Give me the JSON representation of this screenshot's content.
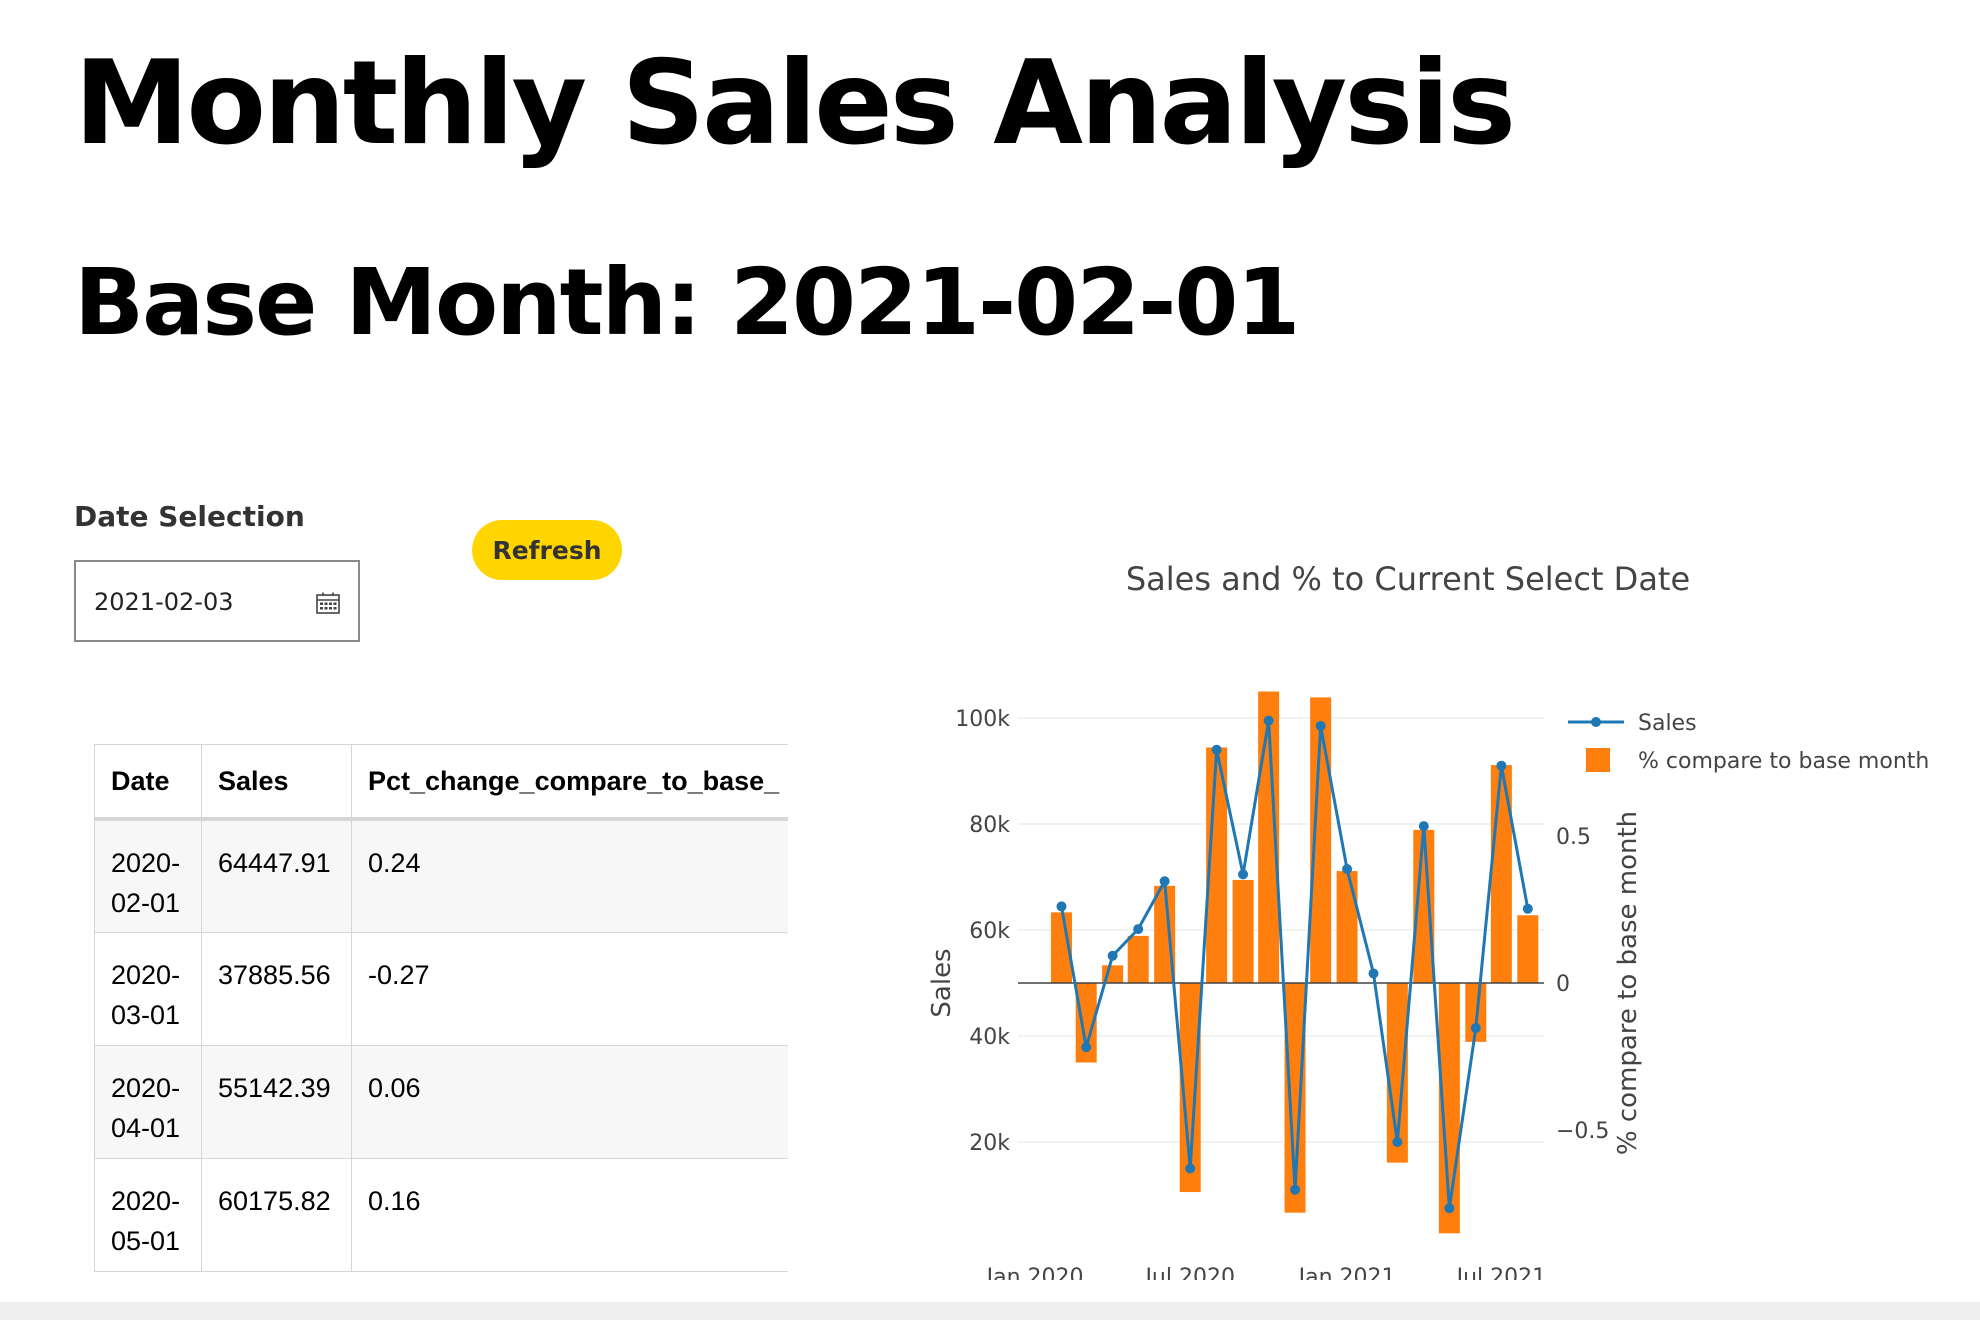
{
  "page": {
    "title": "Monthly Sales Analysis",
    "subtitle": "Base Month: 2021-02-01"
  },
  "controls": {
    "date_label": "Date Selection",
    "date_value": "2021-02-03",
    "calendar_icon": "calendar-icon",
    "refresh_label": "Refresh",
    "refresh_color": "#FFD500"
  },
  "table": {
    "columns": [
      "Date",
      "Sales",
      "Pct_change_compare_to_base_"
    ],
    "rows": [
      {
        "date": "2020-02-01",
        "sales": "64447.91",
        "pct": "0.24"
      },
      {
        "date": "2020-03-01",
        "sales": "37885.56",
        "pct": "-0.27"
      },
      {
        "date": "2020-04-01",
        "sales": "55142.39",
        "pct": "0.06"
      },
      {
        "date": "2020-05-01",
        "sales": "60175.82",
        "pct": "0.16"
      }
    ]
  },
  "chart_data": {
    "type": "bar",
    "title": "Sales and % to Current Select Date",
    "ylabel": "Sales",
    "y2label": "% compare to base month",
    "ylim": [
      0,
      100000
    ],
    "y2lim": [
      -0.9,
      0.9
    ],
    "yticks": [
      20000,
      40000,
      60000,
      80000,
      100000
    ],
    "yticklabels": [
      "20k",
      "40k",
      "60k",
      "80k",
      "100k"
    ],
    "y2ticks": [
      -0.5,
      0,
      0.5
    ],
    "y2ticklabels": [
      "−0.5",
      "0",
      "0.5"
    ],
    "xticks": [
      "2020-01-01",
      "2020-07-01",
      "2021-01-01",
      "2021-07-01"
    ],
    "xticklabels": [
      "Jan 2020",
      "Jul 2020",
      "Jan 2021",
      "Jul 2021"
    ],
    "legend_position": "top-right",
    "colors": {
      "sales": "#1f77b4",
      "pct": "#ff7f0e"
    },
    "x": [
      "2020-02-01",
      "2020-03-01",
      "2020-04-01",
      "2020-05-01",
      "2020-06-01",
      "2020-07-01",
      "2020-08-01",
      "2020-09-01",
      "2020-10-01",
      "2020-11-01",
      "2020-12-01",
      "2021-01-01",
      "2021-02-01",
      "2021-03-01",
      "2021-04-01",
      "2021-05-01",
      "2021-06-01",
      "2021-07-01",
      "2021-08-01"
    ],
    "series": [
      {
        "name": "Sales",
        "kind": "line",
        "values": [
          64447.91,
          37885.56,
          55142.39,
          60175.82,
          69200,
          15000,
          94000,
          70500,
          99500,
          11000,
          98500,
          71500,
          51800,
          20000,
          79600,
          7500,
          41500,
          91000,
          64000
        ]
      },
      {
        "name": "% compare to base month",
        "kind": "bar",
        "values": [
          0.24,
          -0.27,
          0.06,
          0.16,
          0.33,
          -0.71,
          0.8,
          0.35,
          0.99,
          -0.78,
          0.97,
          0.38,
          0,
          -0.61,
          0.52,
          -0.85,
          -0.2,
          0.74,
          0.23
        ]
      }
    ]
  }
}
